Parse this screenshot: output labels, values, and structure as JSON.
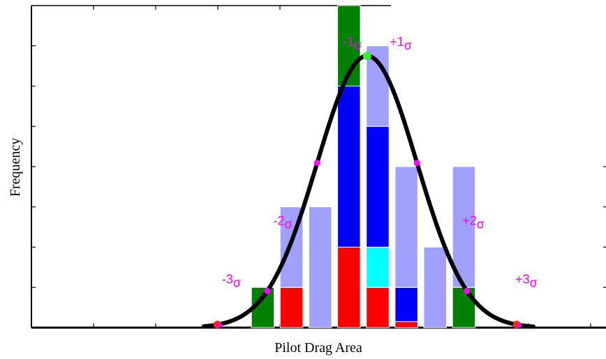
{
  "chart_data": {
    "type": "bar",
    "xlabel": "Pilot Drag Area",
    "ylabel": "Frequency",
    "ylim": [
      0,
      8
    ],
    "xlim": [
      0,
      19
    ],
    "grid": false,
    "bar_width": 0.75,
    "stacks": [
      {
        "x": 7.65,
        "segments": [
          {
            "color": "#008000",
            "value": 1
          }
        ]
      },
      {
        "x": 8.6,
        "segments": [
          {
            "color": "#ff0000",
            "value": 1
          },
          {
            "color": "#9fa0ff",
            "value": 2
          }
        ]
      },
      {
        "x": 9.55,
        "segments": [
          {
            "color": "#9fa0ff",
            "value": 3
          }
        ]
      },
      {
        "x": 10.5,
        "segments": [
          {
            "color": "#ff0000",
            "value": 2
          },
          {
            "color": "#0000ff",
            "value": 4
          },
          {
            "color": "#008000",
            "value": 2
          }
        ]
      },
      {
        "x": 11.45,
        "segments": [
          {
            "color": "#ff0000",
            "value": 1
          },
          {
            "color": "#00ffff",
            "value": 1
          },
          {
            "color": "#0000ff",
            "value": 3
          },
          {
            "color": "#9fa0ff",
            "value": 2
          }
        ]
      },
      {
        "x": 12.4,
        "segments": [
          {
            "color": "#ff0000",
            "value": 0.15
          },
          {
            "color": "#0000ff",
            "value": 0.85
          },
          {
            "color": "#9fa0ff",
            "value": 3
          }
        ]
      },
      {
        "x": 13.35,
        "segments": [
          {
            "color": "#9fa0ff",
            "value": 2
          }
        ]
      },
      {
        "x": 14.3,
        "segments": [
          {
            "color": "#008000",
            "value": 1
          },
          {
            "color": "#9fa0ff",
            "value": 3
          }
        ]
      }
    ],
    "curve": {
      "type": "normal",
      "mean": 11.1,
      "sd": 1.65,
      "peak": 6.75,
      "xmin": 5.7,
      "xmax": 16.6,
      "color": "#000000"
    },
    "sigma_labels": [
      {
        "n": "-3",
        "sub": "σ",
        "x": 6.3,
        "y": 1.1
      },
      {
        "n": "-2",
        "sub": "σ",
        "x": 8.0,
        "y": 2.55
      },
      {
        "n": "-1",
        "sub": "σ",
        "x": 10.3,
        "y": 7.0
      },
      {
        "n": "+1",
        "sub": "σ",
        "x": 11.85,
        "y": 7.0
      },
      {
        "n": "+2",
        "sub": "σ",
        "x": 14.25,
        "y": 2.55
      },
      {
        "n": "+3",
        "sub": "σ",
        "x": 16.0,
        "y": 1.1
      }
    ],
    "sigma_label_color": "#ff00ff",
    "markers": {
      "mean_color": "#33ee33",
      "sigma_color": "#ff00ff",
      "three_sigma_color": "#ff2020"
    }
  }
}
